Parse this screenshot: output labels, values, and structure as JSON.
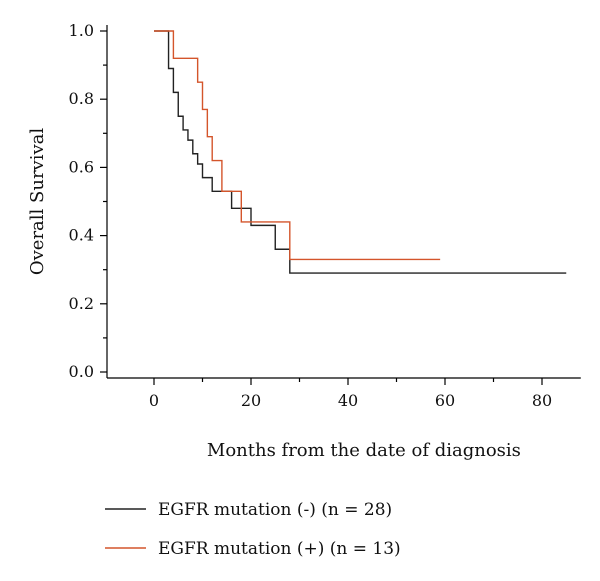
{
  "chart_data": {
    "type": "line",
    "step": true,
    "title": "",
    "xlabel": "Months from the date of diagnosis",
    "ylabel": "Overall Survival",
    "xlim": [
      -10,
      88
    ],
    "ylim": [
      0,
      1.0
    ],
    "xticks": [
      0,
      20,
      40,
      60,
      80
    ],
    "xtick_labels": [
      "0",
      "20",
      "40",
      "60",
      "80"
    ],
    "xticks_minor": [
      10,
      30,
      50,
      70
    ],
    "yticks": [
      0.0,
      0.2,
      0.4,
      0.6,
      0.8,
      1.0
    ],
    "ytick_labels": [
      "0.0",
      "0.2",
      "0.4",
      "0.6",
      "0.8",
      "1.0"
    ],
    "yticks_minor": [
      0.1,
      0.3,
      0.5,
      0.7,
      0.9
    ],
    "grid": false,
    "legend_position": "bottom-left",
    "series": [
      {
        "name": "EGFR mutation (-) (n = 28)",
        "color": "#222222",
        "x": [
          0,
          3,
          4,
          5,
          6,
          7,
          8,
          9,
          10,
          12,
          16,
          20,
          25,
          28,
          85
        ],
        "y": [
          1.0,
          0.89,
          0.82,
          0.75,
          0.71,
          0.68,
          0.64,
          0.61,
          0.57,
          0.53,
          0.48,
          0.43,
          0.36,
          0.29,
          0.29
        ]
      },
      {
        "name": "EGFR mutation (+) (n = 13)",
        "color": "#d4552b",
        "x": [
          0,
          4,
          9,
          10,
          11,
          12,
          14,
          18,
          28,
          59
        ],
        "y": [
          1.0,
          0.92,
          0.85,
          0.77,
          0.69,
          0.62,
          0.53,
          0.44,
          0.33,
          0.33
        ]
      }
    ]
  }
}
